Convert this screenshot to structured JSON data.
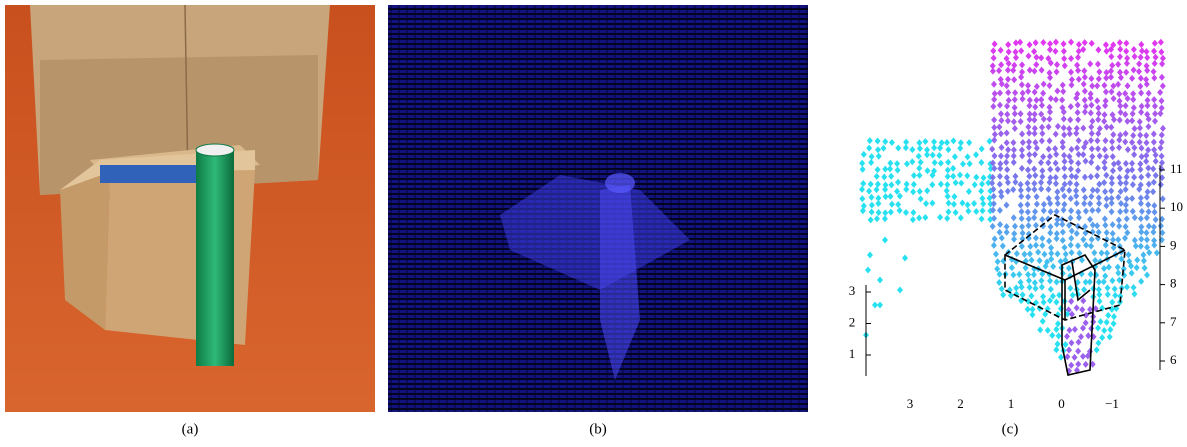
{
  "figure": {
    "panels": [
      {
        "caption": "(a)"
      },
      {
        "caption": "(b)"
      },
      {
        "caption": "(c)"
      }
    ],
    "plot": {
      "x_ticks": [
        3,
        2,
        1,
        0,
        {
          "value": -1,
          "label": "−1"
        }
      ],
      "y_ticks": [
        1,
        2,
        3
      ],
      "z_ticks": [
        6,
        7,
        8,
        9,
        10,
        11
      ]
    }
  }
}
